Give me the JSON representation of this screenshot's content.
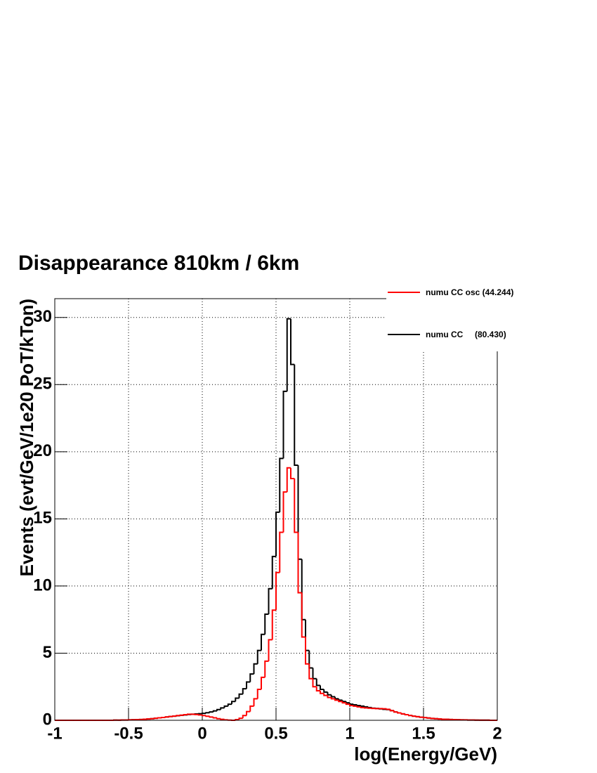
{
  "chart_data": {
    "type": "histogram",
    "title": "Disappearance 810km / 6km",
    "x_label": "log(Energy/GeV)",
    "y_label": "Events (evt/GeV/1e20 PoT/kTon)",
    "xlim": [
      -1,
      2
    ],
    "ylim": [
      0,
      31.4
    ],
    "xticks": [
      -1,
      -0.5,
      0,
      0.5,
      1,
      1.5,
      2
    ],
    "yticks": [
      0,
      5,
      10,
      15,
      20,
      25,
      30
    ],
    "grid": true,
    "legend": "top-right",
    "bins": [
      -1,
      -0.975,
      -0.95,
      -0.925,
      -0.9,
      -0.875,
      -0.85,
      -0.825,
      -0.8,
      -0.775,
      -0.75,
      -0.725,
      -0.7,
      -0.675,
      -0.65,
      -0.625,
      -0.6,
      -0.575,
      -0.55,
      -0.525,
      -0.5,
      -0.475,
      -0.45,
      -0.425,
      -0.4,
      -0.375,
      -0.35,
      -0.325,
      -0.3,
      -0.275,
      -0.25,
      -0.225,
      -0.2,
      -0.175,
      -0.15,
      -0.125,
      -0.1,
      -0.075,
      -0.05,
      -0.025,
      0,
      0.025,
      0.05,
      0.075,
      0.1,
      0.125,
      0.15,
      0.175,
      0.2,
      0.225,
      0.25,
      0.275,
      0.3,
      0.325,
      0.35,
      0.375,
      0.4,
      0.425,
      0.45,
      0.475,
      0.5,
      0.525,
      0.55,
      0.575,
      0.6,
      0.625,
      0.65,
      0.675,
      0.7,
      0.725,
      0.75,
      0.775,
      0.8,
      0.825,
      0.85,
      0.875,
      0.9,
      0.925,
      0.95,
      0.975,
      1,
      1.025,
      1.05,
      1.075,
      1.1,
      1.125,
      1.15,
      1.175,
      1.2,
      1.225,
      1.25,
      1.275,
      1.3,
      1.325,
      1.35,
      1.375,
      1.4,
      1.425,
      1.45,
      1.475,
      1.5,
      1.525,
      1.55,
      1.575,
      1.6,
      1.625,
      1.65,
      1.675,
      1.7,
      1.725,
      1.75,
      1.775,
      1.8,
      1.825,
      1.85,
      1.875,
      1.9,
      1.925,
      1.95,
      1.975,
      2
    ],
    "series": [
      {
        "name": "numu CC     (80.430)",
        "color": "#000000",
        "values": [
          0,
          0,
          0,
          0,
          0,
          0,
          0,
          0,
          0,
          0,
          0,
          0,
          0,
          0,
          0,
          0,
          0.01,
          0.01,
          0.02,
          0.02,
          0.03,
          0.04,
          0.05,
          0.06,
          0.08,
          0.1,
          0.12,
          0.15,
          0.18,
          0.21,
          0.25,
          0.28,
          0.31,
          0.34,
          0.37,
          0.4,
          0.43,
          0.45,
          0.47,
          0.49,
          0.52,
          0.56,
          0.62,
          0.7,
          0.8,
          0.92,
          1.05,
          1.2,
          1.4,
          1.65,
          1.95,
          2.35,
          2.85,
          3.45,
          4.2,
          5.2,
          6.4,
          7.9,
          9.8,
          12.2,
          15.5,
          19.5,
          24.5,
          29.9,
          26.5,
          19,
          12,
          7.5,
          5.2,
          3.9,
          3.1,
          2.6,
          2.3,
          2.1,
          1.9,
          1.75,
          1.6,
          1.5,
          1.4,
          1.3,
          1.2,
          1.15,
          1.1,
          1.05,
          1,
          0.95,
          0.9,
          0.88,
          0.85,
          0.82,
          0.8,
          0.72,
          0.62,
          0.55,
          0.48,
          0.42,
          0.36,
          0.31,
          0.27,
          0.23,
          0.2,
          0.17,
          0.14,
          0.12,
          0.1,
          0.08,
          0.07,
          0.06,
          0.05,
          0.04,
          0.03,
          0.03,
          0.02,
          0.02,
          0.01,
          0.01,
          0.01,
          0.01,
          0,
          0
        ]
      },
      {
        "name": "numu CC osc (44.244)",
        "color": "#ff0000",
        "values": [
          0,
          0,
          0,
          0,
          0,
          0,
          0,
          0,
          0,
          0,
          0,
          0,
          0,
          0,
          0,
          0,
          0.01,
          0.01,
          0.02,
          0.02,
          0.03,
          0.04,
          0.05,
          0.06,
          0.08,
          0.1,
          0.12,
          0.15,
          0.18,
          0.21,
          0.25,
          0.28,
          0.31,
          0.35,
          0.38,
          0.42,
          0.45,
          0.45,
          0.43,
          0.4,
          0.35,
          0.3,
          0.24,
          0.18,
          0.12,
          0.07,
          0.03,
          0.01,
          0,
          0.05,
          0.15,
          0.35,
          0.65,
          1.05,
          1.6,
          2.3,
          3.2,
          4.4,
          6,
          8.2,
          11,
          14,
          17,
          18.8,
          18,
          14,
          9.5,
          6.2,
          4.2,
          3.1,
          2.5,
          2.2,
          2,
          1.85,
          1.7,
          1.6,
          1.5,
          1.4,
          1.3,
          1.2,
          1.1,
          1.05,
          1,
          0.95,
          0.92,
          0.9,
          0.88,
          0.87,
          0.87,
          0.86,
          0.82,
          0.72,
          0.62,
          0.55,
          0.48,
          0.42,
          0.36,
          0.31,
          0.27,
          0.23,
          0.2,
          0.17,
          0.14,
          0.12,
          0.1,
          0.08,
          0.07,
          0.06,
          0.05,
          0.04,
          0.03,
          0.03,
          0.02,
          0.02,
          0.01,
          0.01,
          0.01,
          0.01,
          0,
          0
        ]
      }
    ]
  }
}
